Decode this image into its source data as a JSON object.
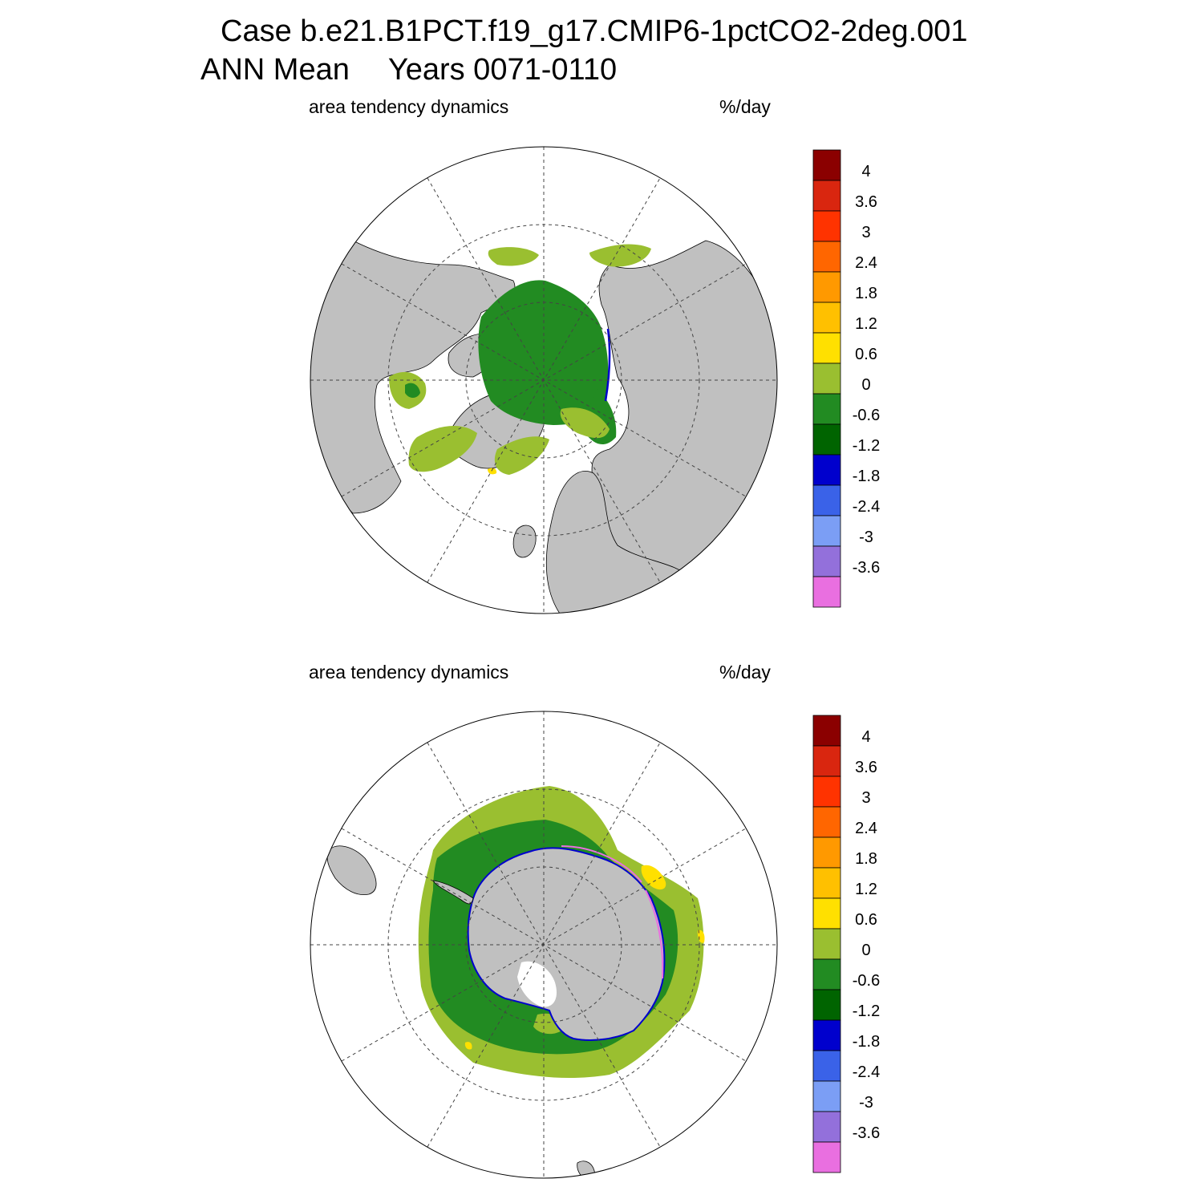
{
  "title": {
    "case": "Case b.e21.B1PCT.f19_g17.CMIP6-1pctCO2-2deg.001",
    "season": "ANN Mean",
    "years": "Years 0071-0110"
  },
  "panels": [
    {
      "variable": "area tendency dynamics",
      "units": "%/day",
      "hemisphere": "north"
    },
    {
      "variable": "area tendency dynamics",
      "units": "%/day",
      "hemisphere": "south"
    }
  ],
  "colorbar": {
    "levels": [
      "4",
      "3.6",
      "3",
      "2.4",
      "1.8",
      "1.2",
      "0.6",
      "0",
      "-0.6",
      "-1.2",
      "-1.8",
      "-2.4",
      "-3",
      "-3.6"
    ],
    "colors": [
      "#8b0000",
      "#d9260f",
      "#ff3300",
      "#ff6600",
      "#ff9900",
      "#ffc000",
      "#ffe000",
      "#9abf30",
      "#228b22",
      "#006400",
      "#0000cd",
      "#3a62e8",
      "#7b9ef5",
      "#9370db",
      "#e96fe0"
    ]
  },
  "map_colors": {
    "land": "#c0c0c0",
    "ocean": "#ffffff",
    "grid": "#444444"
  }
}
